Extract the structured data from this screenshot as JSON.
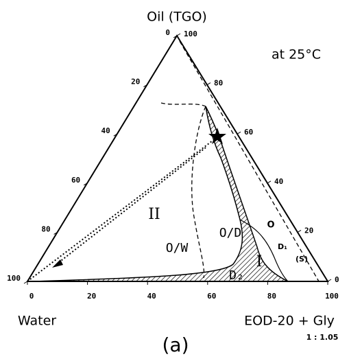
{
  "title": "Oil (TGO)",
  "annotation": "at 25°C",
  "corners": {
    "left": "Water",
    "right": "EOD-20 + Gly",
    "ratio": "1 : 1.05"
  },
  "bottom_ticks": [
    0,
    20,
    40,
    60,
    80,
    100
  ],
  "left_ticks": [
    0,
    20,
    40,
    60,
    80,
    100
  ],
  "right_ticks": [
    100,
    80,
    60,
    40,
    20,
    0
  ],
  "regions": {
    "two_phase": "II",
    "ow": "O/W",
    "od": "O/D",
    "one_phase": "I",
    "d2": "D₂",
    "o": "O",
    "d1": "D₁",
    "s": "(S)"
  },
  "caption": "(a)"
}
